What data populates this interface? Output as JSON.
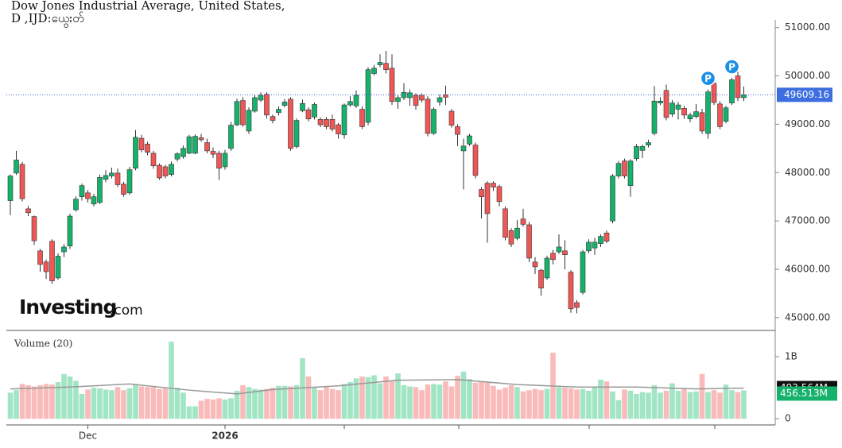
{
  "chart_data": {
    "type": "candlestick",
    "title": "Dow Jones Industrial Average, United States,",
    "subtitle": "D ,IJD:ယွေးတ်",
    "up_color": "#16b26b",
    "down_color": "#ef5757",
    "categories": [
      null,
      null,
      null,
      null,
      null,
      null,
      null,
      null,
      null,
      null,
      null,
      null,
      null,
      "Dec",
      null,
      null,
      null,
      null,
      null,
      null,
      null,
      null,
      null,
      null,
      null,
      null,
      null,
      null,
      null,
      null,
      null,
      null,
      null,
      null,
      null,
      null,
      "2026",
      null,
      null,
      null,
      null,
      null,
      null,
      null,
      null,
      null,
      null,
      null,
      null,
      null,
      null,
      null,
      null,
      null,
      null,
      null,
      null,
      null,
      null,
      null,
      null,
      null,
      null,
      null,
      null,
      null,
      null,
      null,
      null,
      null,
      null,
      null,
      null,
      null,
      null,
      null,
      null,
      null,
      null,
      null,
      null,
      null,
      null,
      null,
      null,
      null,
      null,
      null,
      null,
      null,
      null,
      null,
      null,
      null,
      null,
      null,
      null,
      null,
      null,
      null,
      null,
      null,
      null,
      null,
      null,
      null,
      null,
      null,
      null,
      null,
      null,
      null,
      null,
      null,
      null,
      null,
      null,
      null,
      null,
      null,
      null,
      null,
      null,
      null
    ],
    "open": [
      47420,
      47990,
      48170,
      47250,
      47090,
      46380,
      46150,
      46580,
      45820,
      46360,
      46480,
      47230,
      47500,
      47580,
      47350,
      47380,
      47860,
      47930,
      47990,
      47760,
      47580,
      48090,
      48710,
      48590,
      48400,
      48150,
      48120,
      47960,
      48280,
      48330,
      48400,
      48400,
      48720,
      48620,
      48440,
      48400,
      48120,
      48500,
      48990,
      49490,
      48860,
      49270,
      49500,
      49620,
      49160,
      49240,
      49390,
      49520,
      48540,
      49280,
      49300,
      49150,
      49100,
      49100,
      49100,
      48990,
      48780,
      49400,
      49380,
      49310,
      49040,
      50050,
      50230,
      50260,
      50160,
      49470,
      49550,
      49550,
      49600,
      49600,
      49520,
      48810,
      49460,
      49610,
      49270,
      48950,
      48450,
      48590,
      48570,
      47650,
      47780,
      47780,
      47710,
      47250,
      46800,
      46640,
      47040,
      46920,
      46150,
      45980,
      45820,
      46330,
      46360,
      46380,
      45940,
      45310,
      45520,
      46380,
      46440,
      46530,
      46750,
      47000,
      47930,
      48240,
      47730,
      48290,
      48460,
      48570,
      48810,
      49440,
      49700,
      49210,
      49310,
      49330,
      49110,
      49160,
      49240,
      48810,
      49850,
      49420,
      49060,
      49440,
      50000,
      49550
    ],
    "high": [
      47960,
      48450,
      48220,
      47310,
      47110,
      46420,
      46200,
      46620,
      46330,
      46520,
      47150,
      47510,
      47770,
      47640,
      47560,
      47960,
      48050,
      48100,
      48080,
      47810,
      48120,
      48880,
      48780,
      48640,
      48450,
      48190,
      48160,
      48230,
      48420,
      48560,
      48780,
      48790,
      48800,
      48700,
      48520,
      48450,
      48470,
      49050,
      49530,
      49560,
      49350,
      49610,
      49660,
      49660,
      49200,
      49370,
      49520,
      49560,
      49120,
      49510,
      49350,
      49450,
      49140,
      49150,
      49200,
      49030,
      49430,
      49580,
      49700,
      49370,
      50180,
      50230,
      50450,
      50520,
      50450,
      49600,
      49850,
      49720,
      49640,
      49640,
      49580,
      49350,
      49610,
      49800,
      49320,
      49000,
      48700,
      48800,
      48620,
      47700,
      47820,
      47820,
      47750,
      47300,
      46850,
      47020,
      47250,
      46980,
      46250,
      46010,
      46280,
      46400,
      46720,
      46600,
      45980,
      45360,
      46400,
      46620,
      46650,
      46720,
      46800,
      47970,
      48240,
      48290,
      48280,
      48590,
      48580,
      48680,
      49790,
      49560,
      49820,
      49500,
      49460,
      49380,
      49240,
      49420,
      49320,
      49720,
      49950,
      49480,
      49380,
      49960,
      50150,
      49780
    ],
    "low": [
      47120,
      47950,
      47400,
      47100,
      46500,
      45950,
      45800,
      45700,
      45780,
      46250,
      46420,
      47190,
      47420,
      47380,
      47300,
      47350,
      47800,
      47880,
      47700,
      47500,
      47540,
      48050,
      48420,
      48360,
      48080,
      47850,
      47880,
      47920,
      48230,
      48290,
      48380,
      48380,
      48640,
      48400,
      48300,
      47850,
      48060,
      48450,
      48960,
      48950,
      48800,
      49240,
      49460,
      49120,
      49020,
      49180,
      49350,
      48450,
      48500,
      49250,
      49060,
      49100,
      48940,
      48900,
      48850,
      48700,
      48700,
      49360,
      49340,
      48900,
      48980,
      50010,
      50180,
      50050,
      49400,
      49320,
      49500,
      49380,
      49300,
      49450,
      48750,
      48780,
      49380,
      49400,
      48930,
      48550,
      47650,
      48550,
      47880,
      47050,
      46550,
      47620,
      47300,
      46600,
      46460,
      46600,
      46880,
      46150,
      45900,
      45450,
      45780,
      46100,
      46320,
      46000,
      45100,
      45090,
      45480,
      46330,
      46300,
      46460,
      46540,
      46950,
      47880,
      47880,
      47500,
      48240,
      48300,
      48520,
      48770,
      49400,
      49080,
      49150,
      49100,
      49110,
      49040,
      49120,
      48800,
      48700,
      49400,
      48900,
      49020,
      49400,
      49480,
      49480
    ],
    "close": [
      47930,
      48260,
      47460,
      47170,
      46590,
      46100,
      45950,
      45760,
      46270,
      46460,
      47100,
      47450,
      47730,
      47460,
      47500,
      47900,
      47940,
      47990,
      47750,
      47550,
      48060,
      48730,
      48470,
      48420,
      48140,
      47890,
      47930,
      48170,
      48390,
      48500,
      48740,
      48750,
      48680,
      48450,
      48380,
      48090,
      48400,
      48980,
      49470,
      48990,
      49290,
      49550,
      49600,
      49190,
      49080,
      49310,
      49460,
      48500,
      49080,
      49430,
      49110,
      49410,
      48990,
      48950,
      48900,
      48800,
      49400,
      49470,
      49600,
      48950,
      50130,
      50160,
      50280,
      50130,
      49470,
      49550,
      49660,
      49650,
      49390,
      49500,
      48810,
      49310,
      49550,
      49560,
      48980,
      48790,
      48550,
      48760,
      47940,
      47500,
      47150,
      47700,
      47400,
      46660,
      46520,
      46850,
      46930,
      46230,
      46050,
      45610,
      46230,
      46200,
      46460,
      46300,
      45180,
      45210,
      46360,
      46560,
      46560,
      46680,
      46580,
      47930,
      48190,
      47930,
      48240,
      48540,
      48540,
      48620,
      49480,
      49480,
      49140,
      49440,
      49400,
      49190,
      49190,
      49260,
      48860,
      49670,
      49450,
      48950,
      49340,
      49920,
      49550,
      49610
    ],
    "ylim": [
      44750,
      51160
    ],
    "yticks": [
      {
        "value": 45000,
        "label": "45000.00"
      },
      {
        "value": 46000,
        "label": "46000.00"
      },
      {
        "value": 47000,
        "label": "47000.00"
      },
      {
        "value": 48000,
        "label": "48000.00"
      },
      {
        "value": 49000,
        "label": "49000.00"
      },
      {
        "value": 50000,
        "label": "50000.00"
      },
      {
        "value": 51000,
        "label": "51000.00"
      }
    ],
    "last_price": 49609.16,
    "markers": [
      {
        "index": 117,
        "label": "P"
      },
      {
        "index": 121,
        "label": "P"
      }
    ],
    "logo_main": "Investing",
    "logo_suffix": ".com",
    "volume": {
      "title": "Volume (20)",
      "up_color": "#a2e5c5",
      "down_color": "#f9baba",
      "ma_color": "#999999",
      "values": [
        420,
        460,
        560,
        540,
        520,
        540,
        560,
        550,
        590,
        720,
        680,
        610,
        400,
        470,
        500,
        490,
        470,
        460,
        510,
        460,
        490,
        560,
        520,
        510,
        510,
        480,
        500,
        1240,
        500,
        420,
        200,
        200,
        290,
        320,
        310,
        330,
        310,
        330,
        450,
        540,
        510,
        480,
        470,
        480,
        500,
        530,
        530,
        520,
        540,
        975,
        680,
        500,
        460,
        520,
        480,
        460,
        560,
        590,
        650,
        680,
        670,
        700,
        570,
        680,
        620,
        730,
        540,
        520,
        510,
        460,
        550,
        560,
        550,
        600,
        520,
        690,
        760,
        640,
        580,
        600,
        580,
        530,
        470,
        500,
        540,
        510,
        440,
        460,
        480,
        460,
        480,
        1064,
        510,
        500,
        490,
        470,
        480,
        450,
        520,
        630,
        600,
        440,
        300,
        470,
        450,
        400,
        430,
        420,
        540,
        420,
        450,
        570,
        450,
        480,
        430,
        440,
        720,
        430,
        460,
        420,
        550,
        460,
        430,
        456.513
      ],
      "ma": {
        "x": [
          0,
          10,
          20,
          30,
          38,
          44,
          55,
          65,
          75,
          85,
          95,
          105,
          115,
          123
        ],
        "values": [
          480,
          510,
          560,
          460,
          400,
          470,
          530,
          620,
          630,
          550,
          510,
          510,
          480,
          493.564
        ]
      },
      "ma_last": {
        "value": 493.564,
        "label": "493.564M"
      },
      "last": {
        "value": 456.513,
        "label": "456.513M"
      },
      "ylim": [
        -100,
        1370
      ],
      "yticks": [
        {
          "value": 0,
          "label": "0"
        },
        {
          "value": 1000,
          "label": "1B"
        }
      ]
    }
  }
}
